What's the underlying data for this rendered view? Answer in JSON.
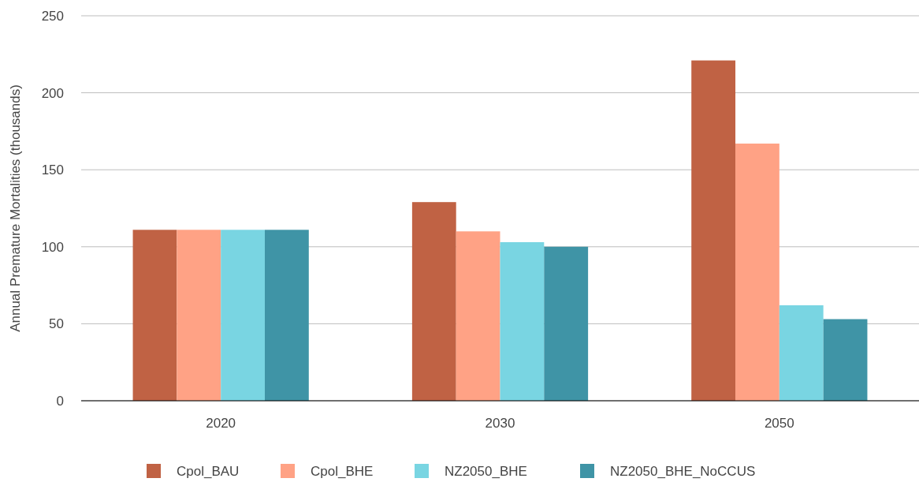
{
  "chart_data": {
    "type": "bar",
    "ylabel": "Annual Premature Mortalities (thousands)",
    "categories": [
      "2020",
      "2030",
      "2050"
    ],
    "series": [
      {
        "name": "Cpol_BAU",
        "color": "#c06244",
        "values": [
          111,
          129,
          221
        ]
      },
      {
        "name": "Cpol_BHE",
        "color": "#ffa285",
        "values": [
          111,
          110,
          167
        ]
      },
      {
        "name": "NZ2050_BHE",
        "color": "#79d5e2",
        "values": [
          111,
          103,
          62
        ]
      },
      {
        "name": "NZ2050_BHE_NoCCUS",
        "color": "#3f94a6",
        "values": [
          111,
          100,
          53
        ]
      }
    ],
    "ylim": [
      0,
      250
    ],
    "yticks": [
      0,
      50,
      100,
      150,
      200,
      250
    ],
    "grid": "y",
    "legend": "bottom"
  }
}
